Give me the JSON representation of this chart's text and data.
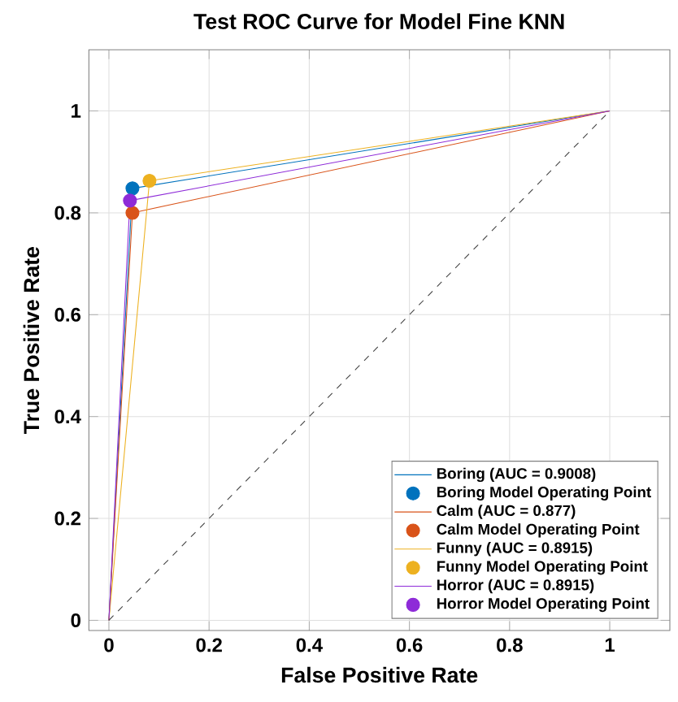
{
  "chart_data": {
    "type": "line",
    "title": "Test ROC Curve for Model Fine KNN",
    "xlabel": "False Positive Rate",
    "ylabel": "True Positive Rate",
    "xlim": [
      -0.04,
      1.12
    ],
    "ylim": [
      -0.02,
      1.12
    ],
    "xticks": [
      0,
      0.2,
      0.4,
      0.6,
      0.8,
      1
    ],
    "yticks": [
      0,
      0.2,
      0.4,
      0.6,
      0.8,
      1
    ],
    "grid": true,
    "legend": "bottom right",
    "series": [
      {
        "name": "Boring (AUC = 0.9008)",
        "color": "#0072bd",
        "x": [
          0,
          0.047,
          1
        ],
        "values": [
          0,
          0.848,
          1
        ]
      },
      {
        "name": "Boring Model Operating Point",
        "type": "scatter",
        "color": "#0072bd",
        "x": [
          0.047
        ],
        "values": [
          0.848
        ]
      },
      {
        "name": "Calm (AUC = 0.877)",
        "color": "#d95319",
        "x": [
          0,
          0.047,
          1
        ],
        "values": [
          0,
          0.8,
          1
        ]
      },
      {
        "name": "Calm Model Operating Point",
        "type": "scatter",
        "color": "#d95319",
        "x": [
          0.047
        ],
        "values": [
          0.8
        ]
      },
      {
        "name": "Funny (AUC = 0.8915)",
        "color": "#edb120",
        "x": [
          0,
          0.081,
          1
        ],
        "values": [
          0,
          0.863,
          1
        ]
      },
      {
        "name": "Funny Model Operating Point",
        "type": "scatter",
        "color": "#edb120",
        "x": [
          0.081
        ],
        "values": [
          0.863
        ]
      },
      {
        "name": "Horror (AUC = 0.8915)",
        "color": "#8e2bd8",
        "x": [
          0,
          0.042,
          1
        ],
        "values": [
          0,
          0.824,
          1
        ]
      },
      {
        "name": "Horror Model Operating Point",
        "type": "scatter",
        "color": "#8e2bd8",
        "x": [
          0.042
        ],
        "values": [
          0.824
        ]
      },
      {
        "line_style": "dashed",
        "color": "#404040",
        "x": [
          0,
          1
        ],
        "values": [
          0,
          1
        ]
      }
    ]
  }
}
